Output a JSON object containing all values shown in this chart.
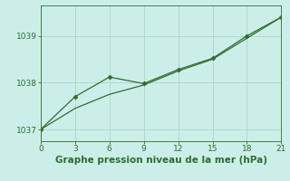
{
  "xlabel": "Graphe pression niveau de la mer (hPa)",
  "background_color": "#cceee8",
  "line1": {
    "x": [
      0,
      3,
      6,
      9,
      12,
      15,
      18,
      21
    ],
    "y": [
      1037.0,
      1037.45,
      1037.75,
      1037.95,
      1038.25,
      1038.5,
      1038.95,
      1039.4
    ],
    "color": "#2d6e2d",
    "linewidth": 0.9,
    "linestyle": "-"
  },
  "line2": {
    "x": [
      0,
      3,
      6,
      9,
      12,
      15,
      18,
      21
    ],
    "y": [
      1037.0,
      1037.7,
      1038.12,
      1037.98,
      1038.28,
      1038.52,
      1039.0,
      1039.4
    ],
    "color": "#2d6e2d",
    "linewidth": 0.9,
    "linestyle": "-",
    "marker": "D",
    "markersize": 2.5
  },
  "xlim": [
    0,
    21
  ],
  "ylim": [
    1036.75,
    1039.65
  ],
  "xticks": [
    0,
    3,
    6,
    9,
    12,
    15,
    18,
    21
  ],
  "yticks": [
    1037,
    1038,
    1039
  ],
  "grid_color": "#aad4cc",
  "grid_linewidth": 0.6,
  "tick_fontsize": 6.5,
  "xlabel_fontsize": 7.5,
  "label_color": "#2d6e2d",
  "spine_color": "#2d6e2d",
  "bottom_spine_color": "#2d6e2d"
}
